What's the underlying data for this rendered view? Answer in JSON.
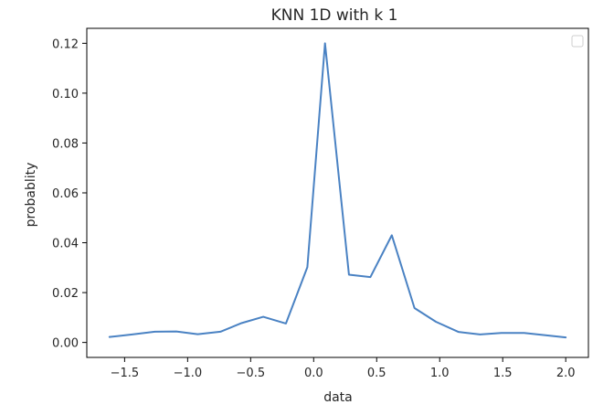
{
  "chart_data": {
    "type": "line",
    "title": "KNN 1D with k 1",
    "xlabel": "data",
    "ylabel": "probablity",
    "xlim": [
      -1.8,
      2.18
    ],
    "ylim": [
      -0.006,
      0.126
    ],
    "xticks": [
      -1.5,
      -1.0,
      -0.5,
      0.0,
      0.5,
      1.0,
      1.5,
      2.0
    ],
    "xtick_labels": [
      "−1.5",
      "−1.0",
      "−0.5",
      "0.0",
      "0.5",
      "1.0",
      "1.5",
      "2.0"
    ],
    "yticks": [
      0.0,
      0.02,
      0.04,
      0.06,
      0.08,
      0.1,
      0.12
    ],
    "ytick_labels": [
      "0.00",
      "0.02",
      "0.04",
      "0.06",
      "0.08",
      "0.10",
      "0.12"
    ],
    "grid": false,
    "legend": {
      "placement": "top-right",
      "entries": []
    },
    "series": [
      {
        "color": "#4a82c3",
        "x": [
          -1.62,
          -1.44,
          -1.26,
          -1.09,
          -0.92,
          -0.74,
          -0.57,
          -0.4,
          -0.22,
          -0.05,
          0.09,
          0.28,
          0.45,
          0.62,
          0.8,
          0.97,
          1.15,
          1.32,
          1.49,
          1.67,
          1.84,
          2.0
        ],
        "y": [
          0.0022,
          0.0032,
          0.0043,
          0.0044,
          0.0033,
          0.0043,
          0.0078,
          0.0103,
          0.0076,
          0.0302,
          0.12,
          0.0272,
          0.0262,
          0.043,
          0.0138,
          0.0083,
          0.0042,
          0.0032,
          0.0038,
          0.0038,
          0.0029,
          0.002
        ]
      }
    ]
  }
}
